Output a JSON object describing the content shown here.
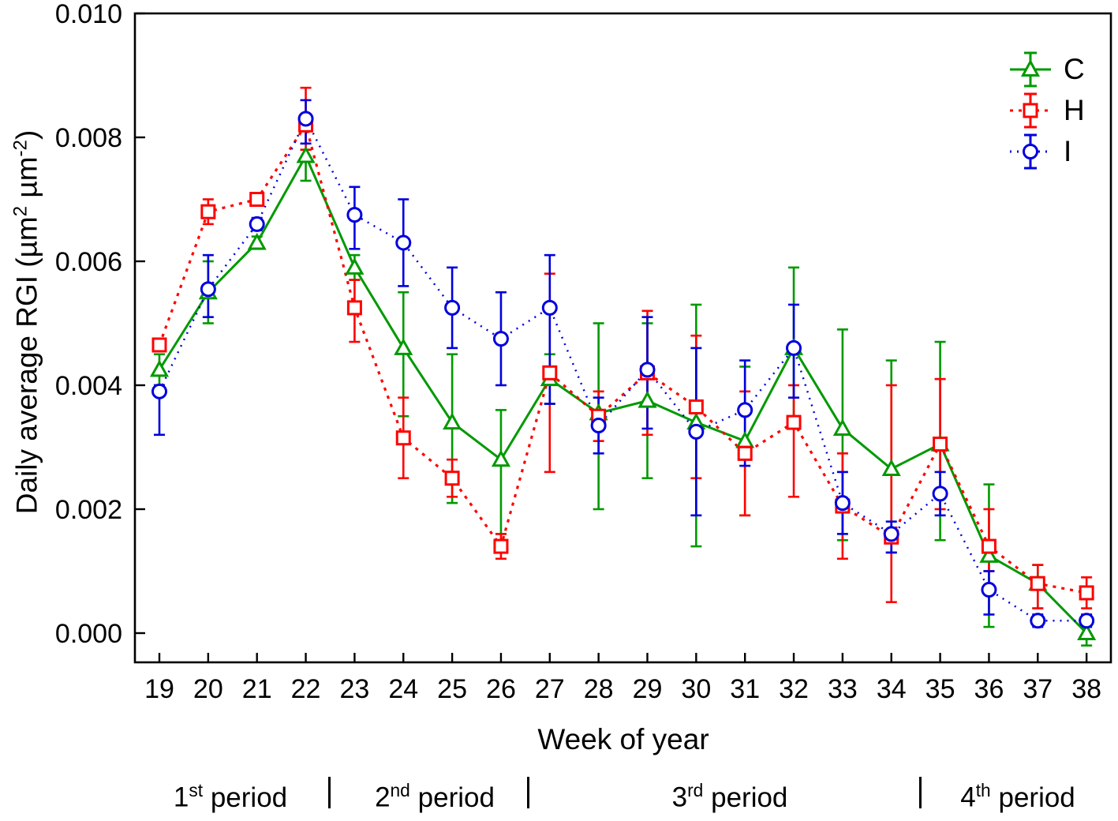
{
  "axes": {
    "xlabel": "Week of year",
    "ylabel": {
      "p1": "Daily average RGI (µm",
      "s1": "2",
      "p2": " µm",
      "s2": "-2",
      "p3": ")"
    }
  },
  "chart_data": {
    "type": "line",
    "title": "",
    "xlabel": "Week of year",
    "ylabel": "Daily average RGI (µm2 µm-2)",
    "x_range": [
      18.5,
      38.5
    ],
    "y_range": [
      -0.00047,
      0.01
    ],
    "grid": false,
    "legend_position": "top-right-inside",
    "y_tick_values": [
      0.0,
      0.002,
      0.004,
      0.006,
      0.008,
      0.01
    ],
    "y_tick_labels": [
      "0.000",
      "0.002",
      "0.004",
      "0.006",
      "0.008",
      "0.010"
    ],
    "x": [
      19,
      20,
      21,
      22,
      23,
      24,
      25,
      26,
      27,
      28,
      29,
      30,
      31,
      32,
      33,
      34,
      35,
      36,
      37,
      38
    ],
    "series": [
      {
        "name": "C",
        "color": "#009900",
        "marker": "triangle",
        "line": "solid",
        "values": [
          0.00425,
          0.0055,
          0.0063,
          0.0077,
          0.0059,
          0.0046,
          0.0034,
          0.0028,
          0.0041,
          0.00355,
          0.00375,
          0.0034,
          0.0031,
          0.0046,
          0.0033,
          0.00265,
          0.00305,
          0.00125,
          0.0008,
          0.0
        ],
        "err_lo": [
          0.004,
          0.005,
          0.0062,
          0.0073,
          0.0057,
          0.0035,
          0.0021,
          0.0016,
          0.0037,
          0.002,
          0.0025,
          0.0014,
          0.0019,
          0.0033,
          0.0015,
          0.0013,
          0.0015,
          0.0001,
          0.0004,
          -0.0002
        ],
        "err_hi": [
          0.0045,
          0.006,
          0.0064,
          0.0078,
          0.0061,
          0.0055,
          0.0045,
          0.0036,
          0.0045,
          0.005,
          0.005,
          0.0053,
          0.0043,
          0.0059,
          0.0049,
          0.0044,
          0.0047,
          0.0024,
          0.0011,
          0.0002
        ]
      },
      {
        "name": "H",
        "color": "#FF0000",
        "marker": "square",
        "line": "dashed",
        "values": [
          0.00465,
          0.0068,
          0.007,
          0.0082,
          0.00525,
          0.00315,
          0.0025,
          0.0014,
          0.0042,
          0.0035,
          0.0042,
          0.00365,
          0.0029,
          0.0034,
          0.00205,
          0.00155,
          0.00305,
          0.0014,
          0.0008,
          0.00065
        ],
        "err_lo": [
          0.00455,
          0.0066,
          0.0069,
          0.0078,
          0.0047,
          0.0025,
          0.0022,
          0.0012,
          0.0026,
          0.0031,
          0.0032,
          0.0025,
          0.0019,
          0.0022,
          0.0012,
          0.0005,
          0.002,
          0.001,
          0.0004,
          0.0004
        ],
        "err_hi": [
          0.00475,
          0.007,
          0.0071,
          0.0088,
          0.0057,
          0.0038,
          0.0028,
          0.0016,
          0.0058,
          0.0039,
          0.0052,
          0.0048,
          0.0039,
          0.004,
          0.0029,
          0.004,
          0.0041,
          0.002,
          0.0011,
          0.0009
        ]
      },
      {
        "name": "I",
        "color": "#0000DD",
        "marker": "circle",
        "line": "dotted",
        "values": [
          0.0039,
          0.00555,
          0.0066,
          0.0083,
          0.00675,
          0.0063,
          0.00525,
          0.00475,
          0.00525,
          0.00335,
          0.00425,
          0.00325,
          0.0036,
          0.0046,
          0.0021,
          0.0016,
          0.00225,
          0.0007,
          0.0002,
          0.0002
        ],
        "err_lo": [
          0.0032,
          0.0051,
          0.0065,
          0.0079,
          0.0062,
          0.0056,
          0.0046,
          0.004,
          0.0037,
          0.0029,
          0.0033,
          0.0019,
          0.0027,
          0.0038,
          0.0016,
          0.0013,
          0.0019,
          0.0003,
          0.0001,
          0.0001
        ],
        "err_hi": [
          0.004,
          0.0061,
          0.0067,
          0.0086,
          0.0072,
          0.007,
          0.0059,
          0.0055,
          0.0061,
          0.0038,
          0.0051,
          0.0046,
          0.0044,
          0.0053,
          0.0026,
          0.0018,
          0.0026,
          0.001,
          0.0003,
          0.0003
        ]
      }
    ]
  },
  "legend": {
    "items": [
      {
        "label": "C"
      },
      {
        "label": "H"
      },
      {
        "label": "I"
      }
    ]
  },
  "periods": {
    "separator": "|",
    "labels": [
      {
        "ordinal": "1",
        "suffix": "st",
        "word": "period"
      },
      {
        "ordinal": "2",
        "suffix": "nd",
        "word": "period"
      },
      {
        "ordinal": "3",
        "suffix": "rd",
        "word": "period"
      },
      {
        "ordinal": "4",
        "suffix": "th",
        "word": "period"
      }
    ]
  }
}
